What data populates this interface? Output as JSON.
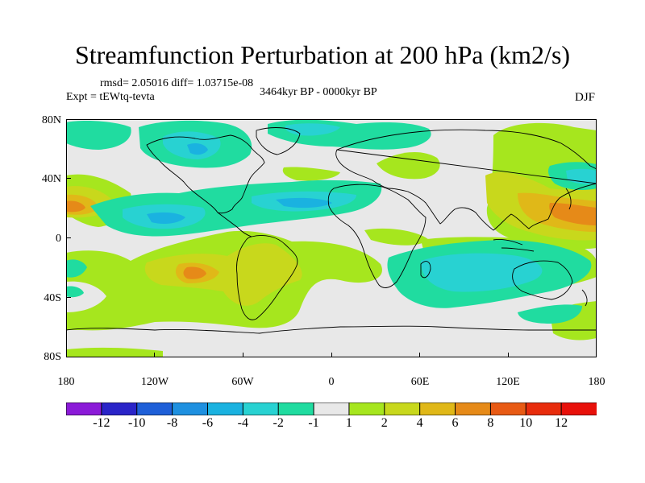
{
  "title": "Streamfunction Perturbation at 200 hPa (km2/s)",
  "stats": "rmsd= 2.05016 diff= 1.03715e-08",
  "experiment": "Expt = tEWtq-tevta",
  "period": "3464kyr BP - 0000kyr BP",
  "season": "DJF",
  "map_lat_labels": [
    "80N",
    "40N",
    "0",
    "40S",
    "80S"
  ],
  "map_lon_labels": [
    "180",
    "120W",
    "60W",
    "0",
    "60E",
    "120E",
    "180"
  ],
  "colorbar": {
    "labels": [
      "-12",
      "-10",
      "-8",
      "-6",
      "-4",
      "-2",
      "-1",
      "1",
      "2",
      "4",
      "6",
      "8",
      "10",
      "12"
    ],
    "colors": [
      "#8b1ad8",
      "#2a24c8",
      "#1e5fd8",
      "#1e90e0",
      "#1ab2e0",
      "#28d2d2",
      "#20dca0",
      "#e8e8e8",
      "#a6e61e",
      "#c8d81c",
      "#e0b818",
      "#e68a18",
      "#e85a14",
      "#e82c0c",
      "#e8100a"
    ]
  },
  "fill_colors": {
    "ocean_bg": "#e8e8e8",
    "pos1": "#a6e61e",
    "pos2": "#c8d81c",
    "pos3": "#e0b818",
    "pos4": "#e68a18",
    "neg1": "#20dca0",
    "neg2": "#28d2d2",
    "neg3": "#1ab2e0"
  }
}
